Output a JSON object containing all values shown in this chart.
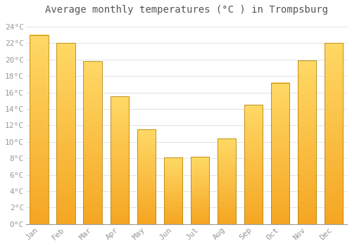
{
  "title": "Average monthly temperatures (°C ) in Trompsburg",
  "months": [
    "Jan",
    "Feb",
    "Mar",
    "Apr",
    "May",
    "Jun",
    "Jul",
    "Aug",
    "Sep",
    "Oct",
    "Nov",
    "Dec"
  ],
  "values": [
    23.0,
    22.0,
    19.8,
    15.5,
    11.5,
    8.1,
    8.2,
    10.4,
    14.5,
    17.2,
    19.9,
    22.0
  ],
  "bar_color_bottom": "#F5A623",
  "bar_color_top": "#FFD966",
  "bar_edge_color": "#B8860B",
  "background_color": "#FFFFFF",
  "grid_color": "#DDDDDD",
  "ylim": [
    0,
    25
  ],
  "ytick_step": 2,
  "title_fontsize": 10,
  "tick_fontsize": 8,
  "tick_font_color": "#999999",
  "title_font_color": "#555555"
}
